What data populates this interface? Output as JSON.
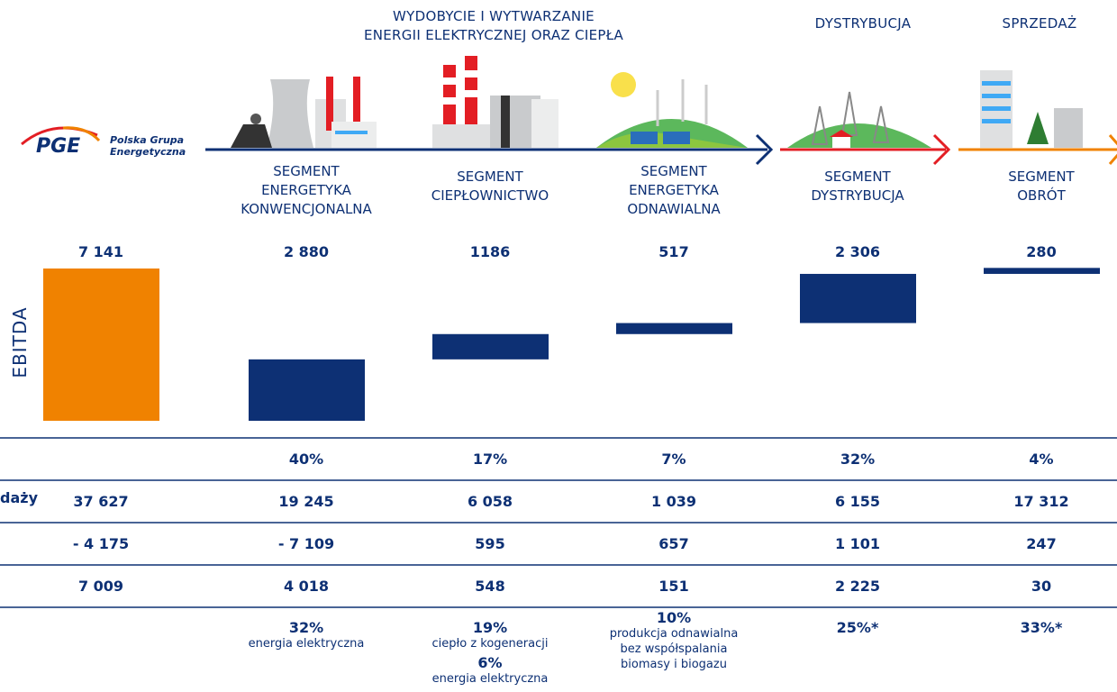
{
  "logo": {
    "mark": "PGE",
    "name": "Polska Grupa\nEnergetyczna"
  },
  "header": {
    "stages": [
      "WYDOBYCIE I WYTWARZANIE\nENERGII ELEKTRYCZNEJ ORAZ CIEPŁA",
      "DYSTRYBUCJA",
      "SPRZEDAŻ"
    ]
  },
  "chart_data": {
    "type": "waterfall",
    "y_label": "EBITDA",
    "categories": [
      null,
      "SEGMENT\nENERGETYKA\nKONWENCJONALNA",
      "SEGMENT\nCIEPŁOWNICTWO",
      "SEGMENT\nENERGETYKA\nODNAWIALNA",
      "SEGMENT\nDYSTRYBUCJA",
      "SEGMENT\nOBRÓT"
    ],
    "values": [
      7141,
      2880,
      1186,
      517,
      2306,
      280
    ],
    "value_labels": [
      "7 141",
      "2 880",
      "1186",
      "517",
      "2 306",
      "280"
    ],
    "colors": [
      "#f08200",
      "#0d3074",
      "#0d3074",
      "#0d3074",
      "#0d3074",
      "#0d3074"
    ],
    "ylim": [
      0,
      7200
    ]
  },
  "table": {
    "rows": [
      [
        null,
        "40%",
        "17%",
        "7%",
        "32%",
        "4%"
      ],
      [
        "37 627",
        "19 245",
        "6 058",
        "1 039",
        "6 155",
        "17 312"
      ],
      [
        "- 4 175",
        "- 7 109",
        "595",
        "657",
        "1 101",
        "247"
      ],
      [
        "7 009",
        "4 018",
        "548",
        "151",
        "2 225",
        "30"
      ]
    ],
    "row_labels": [
      null,
      "daży",
      null,
      null
    ],
    "shares": [
      null,
      [
        {
          "pct": "32%",
          "note": "energia elektryczna"
        }
      ],
      [
        {
          "pct": "19%",
          "note": "ciepło z kogeneracji"
        },
        {
          "pct": "6%",
          "note": "energia elektryczna"
        }
      ],
      [
        {
          "pct": "10%",
          "note": "produkcja odnawialna\nbez współspalania\nbiomasy i biogazu"
        }
      ],
      [
        {
          "pct": "25%*",
          "note": null
        }
      ],
      [
        {
          "pct": "33%*",
          "note": null
        }
      ]
    ]
  }
}
